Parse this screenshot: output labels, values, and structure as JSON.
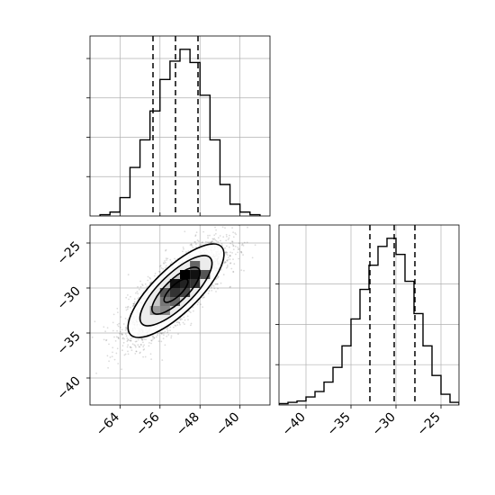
{
  "chart_data": [
    {
      "type": "histogram",
      "panel": "top-left",
      "parameter_axis": "x",
      "xlim": [
        -70,
        -34
      ],
      "bin_edges": [
        -68,
        -66,
        -64,
        -62,
        -60,
        -58,
        -56,
        -54,
        -52,
        -50,
        -48,
        -46,
        -44,
        -42,
        -40,
        -38,
        -36
      ],
      "counts": [
        1,
        3,
        14,
        37,
        58,
        80,
        104,
        118,
        127,
        117,
        92,
        58,
        24,
        9,
        3,
        1
      ],
      "quantiles": [
        -57.4,
        -52.9,
        -48.4
      ],
      "grid": true
    },
    {
      "type": "scatter",
      "panel": "bottom-left",
      "xlim": [
        -70,
        -34
      ],
      "ylim": [
        -43,
        -23
      ],
      "x_ticks": [
        -64,
        -56,
        -48,
        -40
      ],
      "x_tick_labels": [
        "−64",
        "−56",
        "−48",
        "−40"
      ],
      "y_ticks": [
        -40,
        -35,
        -30,
        -25
      ],
      "y_tick_labels": [
        "−40",
        "−35",
        "−30",
        "−25"
      ],
      "mean": [
        -52.8,
        -30.3
      ],
      "std": [
        4.8,
        2.6
      ],
      "correlation": 0.78,
      "contour_levels_sigma": [
        0.5,
        1.0,
        1.5,
        2.0
      ],
      "grid": true
    },
    {
      "type": "histogram",
      "panel": "bottom-right",
      "parameter_axis": "y",
      "xlim": [
        -43,
        -23
      ],
      "x_ticks": [
        -40,
        -35,
        -30,
        -25
      ],
      "x_tick_labels": [
        "−40",
        "−35",
        "−30",
        "−25"
      ],
      "bin_edges": [
        -44,
        -43,
        -42,
        -41,
        -40,
        -39,
        -38,
        -37,
        -36,
        -35,
        -34,
        -33,
        -32,
        -31,
        -30,
        -29,
        -28,
        -27,
        -26,
        -25,
        -24,
        -23
      ],
      "counts": [
        0,
        1,
        2,
        3,
        6,
        10,
        17,
        28,
        44,
        64,
        86,
        104,
        118,
        124,
        112,
        92,
        68,
        44,
        22,
        8,
        2
      ],
      "quantiles": [
        -32.9,
        -30.2,
        -27.9
      ],
      "grid": true
    }
  ]
}
